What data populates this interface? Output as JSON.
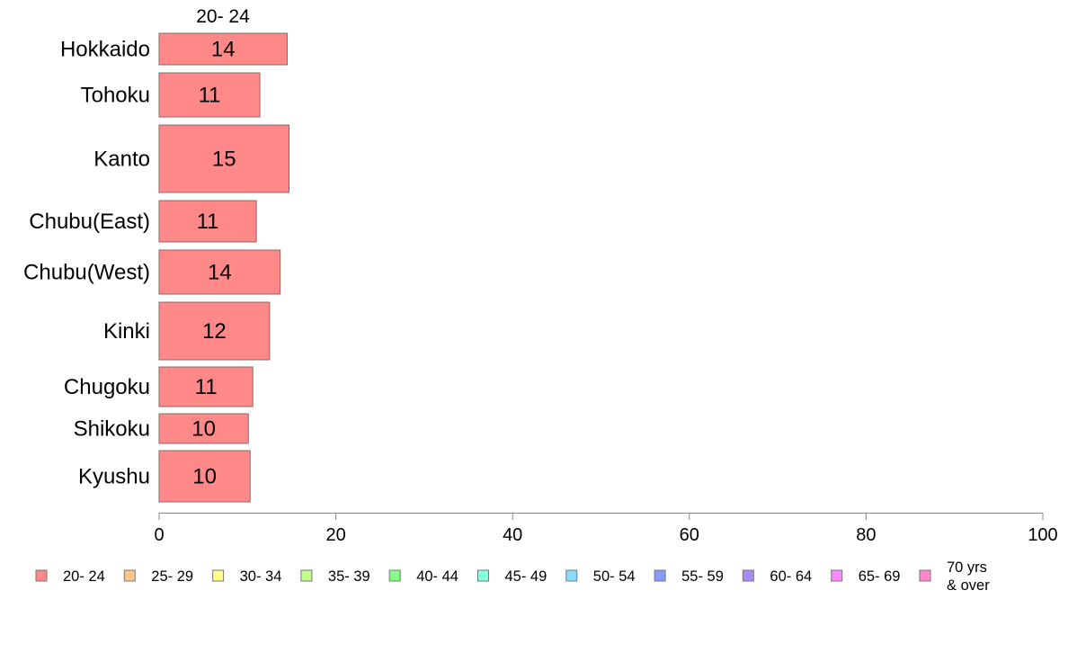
{
  "chart_data": {
    "type": "bar",
    "orientation": "horizontal",
    "stacked": true,
    "column_header": "20- 24",
    "categories": [
      "Hokkaido",
      "Tohoku",
      "Kanto",
      "Chubu(East)",
      "Chubu(West)",
      "Kinki",
      "Chugoku",
      "Shikoku",
      "Kyushu"
    ],
    "series": [
      {
        "name": "20- 24",
        "color": "#ff8888",
        "values": [
          14.5,
          11.4,
          14.7,
          11.0,
          13.7,
          12.5,
          10.6,
          10.1,
          10.3
        ],
        "labels": [
          "14",
          "11",
          "15",
          "11",
          "14",
          "12",
          "11",
          "10",
          "10"
        ]
      }
    ],
    "xlim": [
      0,
      100
    ],
    "xticks": [
      0,
      20,
      40,
      60,
      80,
      100
    ],
    "grid": false,
    "legend_position": "bottom",
    "legend": [
      {
        "label": "20- 24",
        "color": "#ff8888"
      },
      {
        "label": "25- 29",
        "color": "#ffc488"
      },
      {
        "label": "30- 34",
        "color": "#ffff88"
      },
      {
        "label": "35- 39",
        "color": "#c4ff88"
      },
      {
        "label": "40- 44",
        "color": "#88ff88"
      },
      {
        "label": "45- 49",
        "color": "#88ffdd"
      },
      {
        "label": "50- 54",
        "color": "#88ddff"
      },
      {
        "label": "55- 59",
        "color": "#8899ff"
      },
      {
        "label": "60- 64",
        "color": "#aa88ff"
      },
      {
        "label": "65- 69",
        "color": "#ff88ff"
      },
      {
        "label": "70 yrs\n& over",
        "color": "#ff88cc"
      }
    ]
  }
}
